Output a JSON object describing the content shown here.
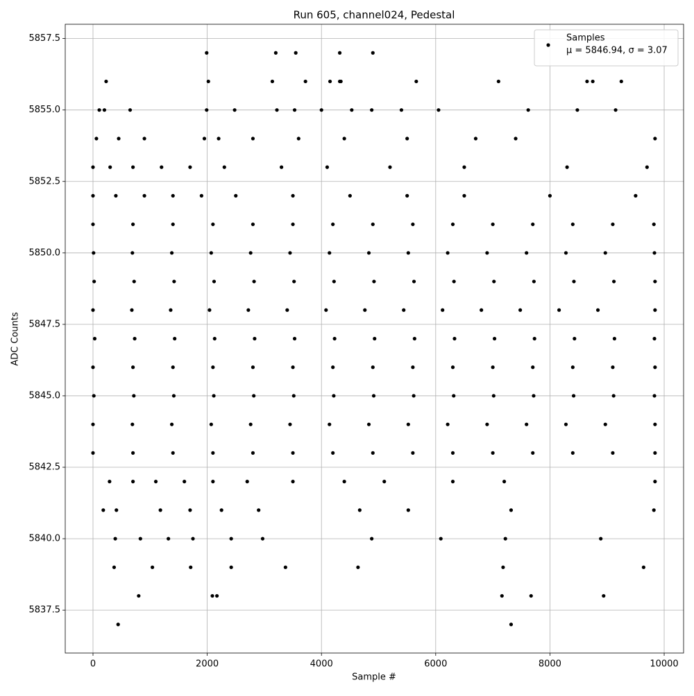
{
  "chart_data": {
    "type": "scatter",
    "title": "Run 605, channel024, Pedestal",
    "x_label": "Sample #",
    "y_label": "ADC Counts",
    "xlim": [
      -486,
      10340
    ],
    "ylim": [
      5836,
      5858
    ],
    "xticks": [
      0,
      2000,
      4000,
      6000,
      8000,
      10000
    ],
    "yticks": [
      5837.5,
      {
        "value": 5840,
        "label": "5840.0"
      },
      5842.5,
      {
        "value": 5845,
        "label": "5845.0"
      },
      5847.5,
      {
        "value": 5850,
        "label": "5850.0"
      },
      5852.5,
      {
        "value": 5855,
        "label": "5855.0"
      },
      5857.5
    ],
    "grid": true,
    "legend": "upper right",
    "legend_note": "μ = 5846.94, σ = 3.07",
    "series": [
      {
        "name": "Samples",
        "color": "#000000",
        "x": [
          1990,
          3200,
          3550,
          4320,
          4900,
          230,
          2020,
          3140,
          3720,
          4150,
          4320,
          4340,
          5660,
          7100,
          8650,
          8750,
          9250,
          110,
          200,
          650,
          1990,
          2480,
          3220,
          3530,
          4000,
          4530,
          4880,
          5400,
          6050,
          7620,
          8480,
          9150,
          60,
          450,
          900,
          1950,
          2200,
          2800,
          3600,
          4400,
          5500,
          6700,
          7400,
          9840,
          0,
          300,
          700,
          1200,
          1700,
          2300,
          3300,
          4100,
          5200,
          6500,
          8300,
          9700,
          0,
          400,
          900,
          1400,
          1900,
          2500,
          3500,
          4500,
          5500,
          6500,
          8000,
          9500,
          0,
          700,
          1400,
          2100,
          2800,
          3500,
          4200,
          4900,
          5600,
          6300,
          7000,
          7700,
          8400,
          9100,
          9820,
          10,
          690,
          1380,
          2070,
          2760,
          3450,
          4140,
          4830,
          5520,
          6210,
          6900,
          7590,
          8280,
          8970,
          9830,
          20,
          720,
          1420,
          2120,
          2820,
          3520,
          4220,
          4920,
          5620,
          6320,
          7020,
          7720,
          8420,
          9120,
          9840,
          0,
          680,
          1360,
          2040,
          2720,
          3400,
          4080,
          4760,
          5440,
          6120,
          6800,
          7480,
          8160,
          8840,
          9840,
          30,
          730,
          1430,
          2130,
          2830,
          3530,
          4230,
          4930,
          5630,
          6330,
          7030,
          7730,
          8430,
          9130,
          9830,
          0,
          700,
          1400,
          2100,
          2800,
          3500,
          4200,
          4900,
          5600,
          6300,
          7000,
          7700,
          8400,
          9100,
          9840,
          15,
          715,
          1415,
          2115,
          2815,
          3515,
          4215,
          4915,
          5615,
          6315,
          7015,
          7715,
          8415,
          9115,
          9830,
          0,
          690,
          1380,
          2070,
          2760,
          3450,
          4140,
          4830,
          5520,
          6210,
          6900,
          7590,
          8280,
          8970,
          9840,
          0,
          700,
          1400,
          2100,
          2800,
          3500,
          4200,
          4900,
          5600,
          6300,
          7000,
          7700,
          8400,
          9100,
          9840,
          290,
          700,
          1100,
          1600,
          2100,
          2700,
          3500,
          4400,
          5100,
          6300,
          7200,
          9840,
          180,
          410,
          1180,
          1700,
          2250,
          2900,
          4670,
          5520,
          7320,
          9820,
          390,
          830,
          1320,
          1750,
          2420,
          2970,
          4880,
          6090,
          7220,
          8890,
          370,
          1040,
          1710,
          2420,
          3370,
          4640,
          7180,
          9640,
          800,
          2090,
          2170,
          7160,
          7670,
          8940,
          440,
          7320
        ],
        "values": [
          5857,
          5857,
          5857,
          5857,
          5857,
          5856,
          5856,
          5856,
          5856,
          5856,
          5856,
          5856,
          5856,
          5856,
          5856,
          5856,
          5856,
          5855,
          5855,
          5855,
          5855,
          5855,
          5855,
          5855,
          5855,
          5855,
          5855,
          5855,
          5855,
          5855,
          5855,
          5855,
          5854,
          5854,
          5854,
          5854,
          5854,
          5854,
          5854,
          5854,
          5854,
          5854,
          5854,
          5854,
          5853,
          5853,
          5853,
          5853,
          5853,
          5853,
          5853,
          5853,
          5853,
          5853,
          5853,
          5853,
          5852,
          5852,
          5852,
          5852,
          5852,
          5852,
          5852,
          5852,
          5852,
          5852,
          5852,
          5852,
          5851,
          5851,
          5851,
          5851,
          5851,
          5851,
          5851,
          5851,
          5851,
          5851,
          5851,
          5851,
          5851,
          5851,
          5851,
          5850,
          5850,
          5850,
          5850,
          5850,
          5850,
          5850,
          5850,
          5850,
          5850,
          5850,
          5850,
          5850,
          5850,
          5850,
          5849,
          5849,
          5849,
          5849,
          5849,
          5849,
          5849,
          5849,
          5849,
          5849,
          5849,
          5849,
          5849,
          5849,
          5849,
          5848,
          5848,
          5848,
          5848,
          5848,
          5848,
          5848,
          5848,
          5848,
          5848,
          5848,
          5848,
          5848,
          5848,
          5848,
          5847,
          5847,
          5847,
          5847,
          5847,
          5847,
          5847,
          5847,
          5847,
          5847,
          5847,
          5847,
          5847,
          5847,
          5847,
          5846,
          5846,
          5846,
          5846,
          5846,
          5846,
          5846,
          5846,
          5846,
          5846,
          5846,
          5846,
          5846,
          5846,
          5846,
          5845,
          5845,
          5845,
          5845,
          5845,
          5845,
          5845,
          5845,
          5845,
          5845,
          5845,
          5845,
          5845,
          5845,
          5845,
          5844,
          5844,
          5844,
          5844,
          5844,
          5844,
          5844,
          5844,
          5844,
          5844,
          5844,
          5844,
          5844,
          5844,
          5844,
          5843,
          5843,
          5843,
          5843,
          5843,
          5843,
          5843,
          5843,
          5843,
          5843,
          5843,
          5843,
          5843,
          5843,
          5843,
          5842,
          5842,
          5842,
          5842,
          5842,
          5842,
          5842,
          5842,
          5842,
          5842,
          5842,
          5842,
          5841,
          5841,
          5841,
          5841,
          5841,
          5841,
          5841,
          5841,
          5841,
          5841,
          5840,
          5840,
          5840,
          5840,
          5840,
          5840,
          5840,
          5840,
          5840,
          5840,
          5839,
          5839,
          5839,
          5839,
          5839,
          5839,
          5839,
          5839,
          5838,
          5838,
          5838,
          5838,
          5838,
          5838,
          5837,
          5837
        ]
      }
    ]
  }
}
